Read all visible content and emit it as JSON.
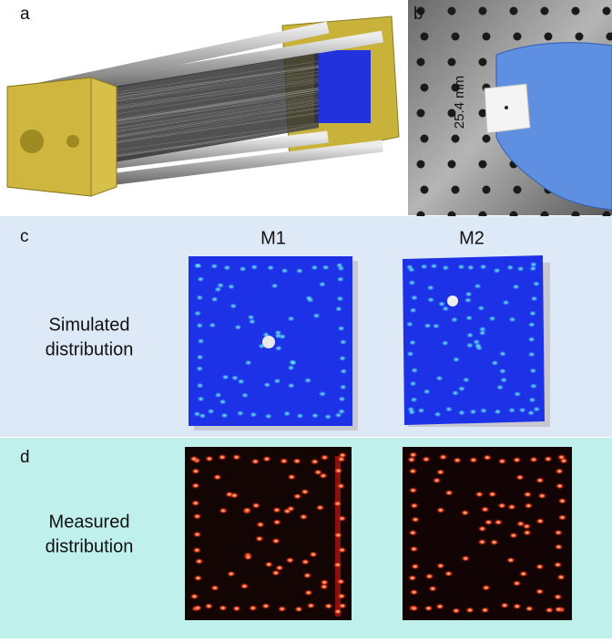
{
  "panels": [
    {
      "letter": "a"
    },
    {
      "letter": "b",
      "scale_label": "25.4 mm"
    },
    {
      "letter": "c",
      "row_label": [
        "Simulated",
        "distribution"
      ],
      "columns": [
        "M1",
        "M2"
      ]
    },
    {
      "letter": "d",
      "row_label": [
        "Measured",
        "distribution"
      ]
    }
  ]
}
